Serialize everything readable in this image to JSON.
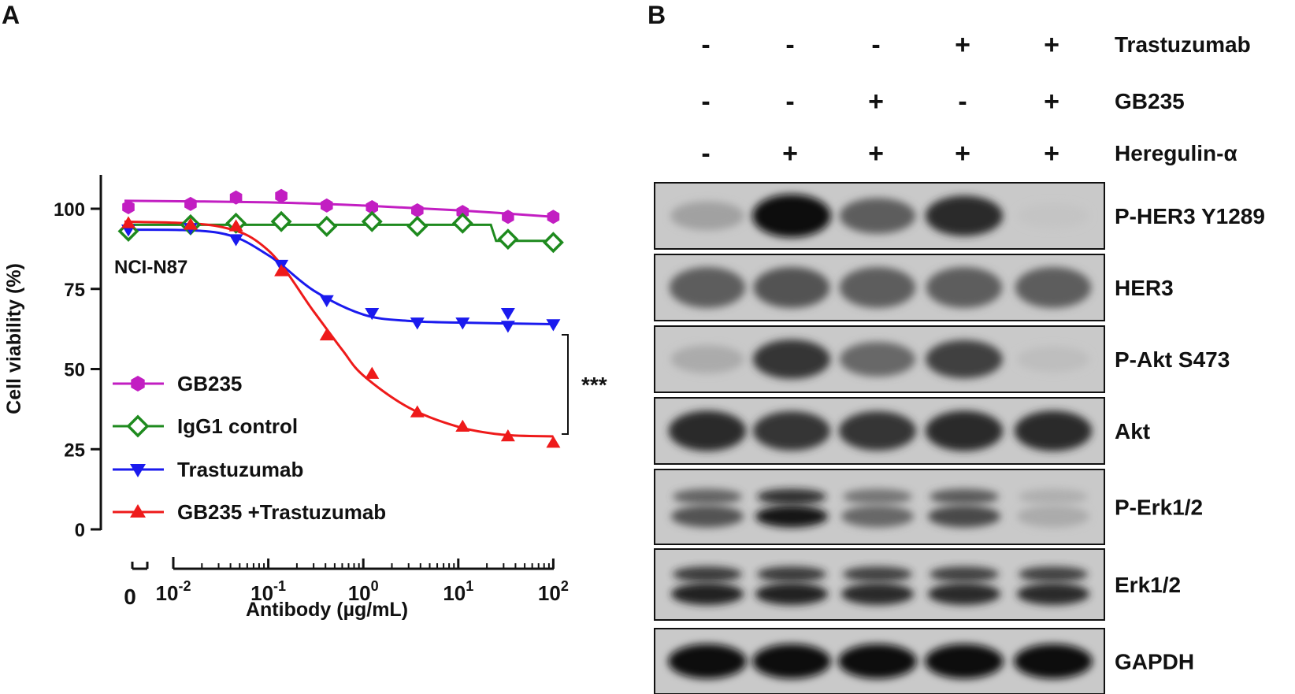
{
  "panel_a": {
    "letter": "A",
    "cell_line": "NCI-N87",
    "significance": "***",
    "chart_data": {
      "type": "line",
      "title": "",
      "xlabel": "Antibody (µg/mL)",
      "ylabel": "Cell viability (%)",
      "xscale": "log",
      "xlim": [
        0.01,
        100
      ],
      "ylim": [
        0,
        110
      ],
      "yticks": [
        0,
        25,
        50,
        75,
        100
      ],
      "yticklabels": [
        "0",
        "25",
        "50",
        "75",
        "100"
      ],
      "zero_label": "0",
      "xtick_base": "10",
      "xtick_exponents": [
        "-2",
        "-1",
        "0",
        "1",
        "2"
      ],
      "xticks": [
        0.01,
        0.1,
        1,
        10,
        100
      ],
      "legend": "left, lower middle",
      "grid": false,
      "series": [
        {
          "name": "GB235",
          "color": "#c21ec2",
          "marker": "hexagon",
          "x": [
            0,
            0.0152,
            0.0457,
            0.137,
            0.412,
            1.235,
            3.704,
            11.11,
            33.33,
            100
          ],
          "y": [
            100.5,
            101.5,
            103.5,
            104,
            101,
            100.5,
            99.5,
            99,
            97.5,
            97.5
          ],
          "fit": [
            [
              0.0095,
              102.5
            ],
            [
              0.1,
              102
            ],
            [
              1,
              101
            ],
            [
              10,
              99.5
            ],
            [
              100,
              97.5
            ]
          ]
        },
        {
          "name": "IgG1 control",
          "color": "#1e8a1e",
          "marker": "diamond-open",
          "x": [
            0,
            0.0152,
            0.0457,
            0.137,
            0.412,
            1.235,
            3.704,
            11.11,
            33.33,
            100
          ],
          "y": [
            93,
            95,
            95.5,
            96,
            94.5,
            96,
            94.5,
            95.5,
            90.5,
            89.5
          ],
          "fit": [
            [
              0.0095,
              95
            ],
            [
              22,
              95
            ],
            [
              25,
              90
            ],
            [
              100,
              90
            ]
          ]
        },
        {
          "name": "Trastuzumab",
          "color": "#1a1aee",
          "marker": "triangle-down",
          "x": [
            0,
            0.0152,
            0.0457,
            0.137,
            0.412,
            1.235,
            3.704,
            11.11,
            33.33,
            33.33,
            100
          ],
          "y": [
            93.5,
            94,
            90.5,
            82.5,
            71.5,
            67.5,
            64.5,
            64.5,
            67.5,
            63.5,
            64
          ],
          "fit": [
            [
              0.0095,
              93.5
            ],
            [
              0.03,
              92.5
            ],
            [
              0.1,
              85.5
            ],
            [
              0.3,
              74.5
            ],
            [
              1,
              67
            ],
            [
              3,
              65
            ],
            [
              10,
              64.5
            ],
            [
              100,
              64
            ]
          ]
        },
        {
          "name": "GB235 +Trastuzumab",
          "color": "#ee1a1a",
          "marker": "triangle-up",
          "x": [
            0,
            0.0152,
            0.0457,
            0.137,
            0.412,
            1.235,
            3.704,
            11.11,
            33.33,
            100
          ],
          "y": [
            95.5,
            95,
            94.5,
            80.5,
            60.5,
            48.5,
            36.5,
            32,
            29,
            27
          ],
          "fit": [
            [
              0.0095,
              96
            ],
            [
              0.03,
              94.5
            ],
            [
              0.1,
              87
            ],
            [
              0.3,
              68
            ],
            [
              0.6,
              56
            ],
            [
              1,
              48
            ],
            [
              3,
              38
            ],
            [
              10,
              32
            ],
            [
              30,
              29.5
            ],
            [
              100,
              29
            ]
          ]
        }
      ]
    }
  },
  "panel_b": {
    "letter": "B",
    "treatments": [
      {
        "name": "Trastuzumab",
        "signs": [
          "-",
          "-",
          "-",
          "+",
          "+"
        ]
      },
      {
        "name": "GB235",
        "signs": [
          "-",
          "-",
          "+",
          "-",
          "+"
        ]
      },
      {
        "name": "Heregulin-α",
        "signs": [
          "-",
          "+",
          "+",
          "+",
          "+"
        ]
      }
    ],
    "blots": [
      {
        "label": "P-HER3 Y1289",
        "levels": [
          0.2,
          0.95,
          0.55,
          0.8,
          0.02
        ]
      },
      {
        "label": "HER3",
        "levels": [
          0.55,
          0.6,
          0.55,
          0.55,
          0.55
        ]
      },
      {
        "label": "P-Akt S473",
        "levels": [
          0.15,
          0.75,
          0.5,
          0.7,
          0.05
        ]
      },
      {
        "label": "Akt",
        "levels": [
          0.8,
          0.75,
          0.75,
          0.8,
          0.8
        ]
      },
      {
        "label": "P-Erk1/2",
        "levels": [
          0.6,
          0.9,
          0.5,
          0.65,
          0.15
        ]
      },
      {
        "label": "Erk1/2",
        "levels": [
          0.85,
          0.85,
          0.8,
          0.8,
          0.8
        ]
      },
      {
        "label": "GAPDH",
        "levels": [
          0.95,
          0.95,
          0.95,
          0.95,
          0.95
        ]
      }
    ]
  }
}
